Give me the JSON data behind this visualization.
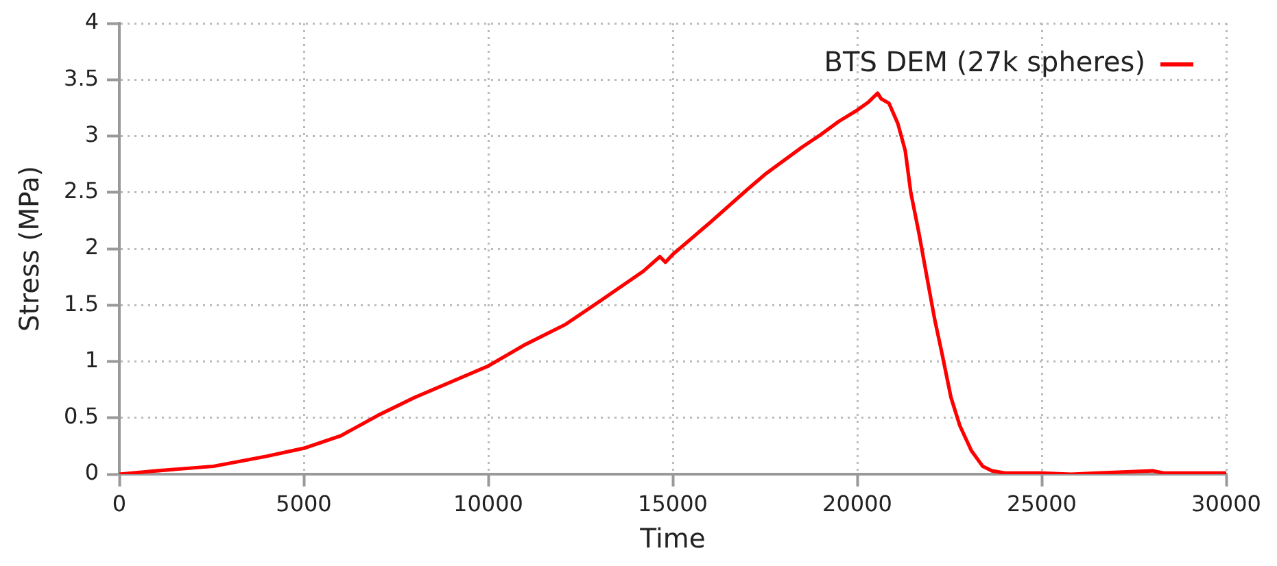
{
  "chart_data": {
    "type": "line",
    "xlabel": "Time",
    "ylabel": "Stress (MPa)",
    "x": [
      0,
      1000,
      2550,
      4000,
      5000,
      6000,
      7000,
      8000,
      9000,
      10000,
      11000,
      12100,
      13000,
      14200,
      14650,
      14800,
      15000,
      16000,
      17000,
      17500,
      18000,
      18500,
      19000,
      19500,
      20000,
      20300,
      20550,
      20650,
      20860,
      21100,
      21300,
      21450,
      21670,
      21920,
      22100,
      22290,
      22540,
      22780,
      23090,
      23400,
      23650,
      24000,
      25000,
      25800,
      26500,
      28000,
      28300,
      30000
    ],
    "series": [
      {
        "name": "BTS DEM (27k spheres)",
        "color": "#ff0000",
        "values": [
          0,
          0.03,
          0.07,
          0.16,
          0.23,
          0.34,
          0.52,
          0.68,
          0.82,
          0.96,
          1.15,
          1.33,
          1.53,
          1.8,
          1.93,
          1.88,
          1.95,
          2.23,
          2.52,
          2.66,
          2.78,
          2.9,
          3.01,
          3.13,
          3.23,
          3.3,
          3.38,
          3.33,
          3.29,
          3.11,
          2.87,
          2.5,
          2.14,
          1.69,
          1.37,
          1.08,
          0.68,
          0.43,
          0.21,
          0.07,
          0.03,
          0.01,
          0.01,
          0,
          0.01,
          0.03,
          0.01,
          0.01
        ]
      }
    ],
    "xlim": [
      0,
      30000
    ],
    "xticks": [
      0,
      5000,
      10000,
      15000,
      20000,
      25000,
      30000
    ],
    "ylim": [
      0,
      4
    ],
    "yticks": [
      0,
      0.5,
      1,
      1.5,
      2,
      2.5,
      3,
      3.5,
      4
    ],
    "grid": true,
    "legend": "top right",
    "marker": "none",
    "line_style": "solid"
  }
}
